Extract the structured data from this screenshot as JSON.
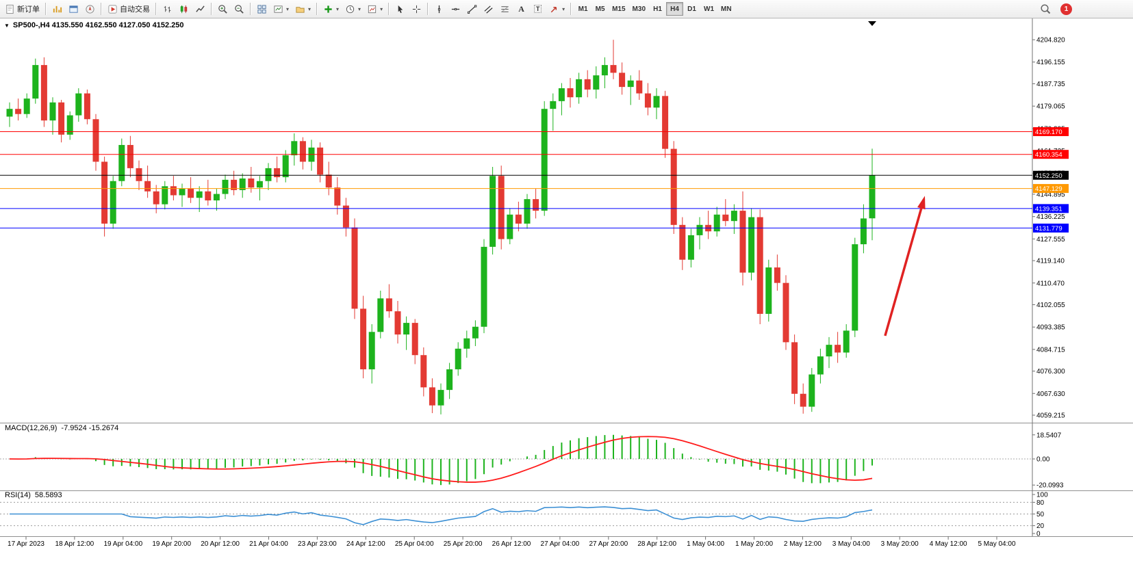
{
  "toolbar": {
    "new_order": "新订单",
    "auto_trading": "自动交易",
    "text_tool": "A",
    "label_tool": "T",
    "timeframes": [
      "M1",
      "M5",
      "M15",
      "M30",
      "H1",
      "H4",
      "D1",
      "W1",
      "MN"
    ],
    "active_timeframe": "H4",
    "notification_count": "1"
  },
  "chart": {
    "title": "SP500-,H4 4135.550 4162.550 4127.050 4152.250"
  },
  "colors": {
    "up": "#1db31d",
    "down": "#e33a33",
    "macd_hist": "#1db31d",
    "macd_signal": "#ff1a1a",
    "rsi": "#3b8fd4",
    "axis_text": "#000000",
    "separator": "#909090"
  },
  "chart_data": {
    "type": "candlestick",
    "symbol": "SP500-",
    "period": "H4",
    "ohlc_display": {
      "open": "4135.550",
      "high": "4162.550",
      "low": "4127.050",
      "close": "4152.250"
    },
    "y_axis_labels": [
      "4204.820",
      "4196.155",
      "4187.735",
      "4179.065",
      "4170.395",
      "4161.725",
      "4153.055",
      "4144.895",
      "4136.225",
      "4127.555",
      "4119.140",
      "4110.470",
      "4102.055",
      "4093.385",
      "4084.715",
      "4076.300",
      "4067.630",
      "4059.215"
    ],
    "x_axis_labels": [
      "17 Apr 2023",
      "18 Apr 12:00",
      "19 Apr 04:00",
      "19 Apr 20:00",
      "20 Apr 12:00",
      "21 Apr 04:00",
      "23 Apr 23:00",
      "24 Apr 12:00",
      "25 Apr 04:00",
      "25 Apr 20:00",
      "26 Apr 12:00",
      "27 Apr 04:00",
      "27 Apr 20:00",
      "28 Apr 12:00",
      "1 May 04:00",
      "1 May 20:00",
      "2 May 12:00",
      "3 May 04:00",
      "3 May 20:00",
      "4 May 12:00",
      "5 May 04:00"
    ],
    "hlines": [
      {
        "price": 4169.17,
        "label": "4169.170",
        "color": "#ff0000"
      },
      {
        "price": 4160.354,
        "label": "4160.354",
        "color": "#ff0000"
      },
      {
        "price": 4152.25,
        "label": "4152.250",
        "color": "#000000",
        "type": "current-price"
      },
      {
        "price": 4147.129,
        "label": "4147.129",
        "color": "#ff9900"
      },
      {
        "price": 4139.351,
        "label": "4139.351",
        "color": "#0000ff"
      },
      {
        "price": 4131.779,
        "label": "4131.779",
        "color": "#0000ff"
      }
    ],
    "candles": [
      [
        4175.0,
        4180.5,
        4171.0,
        4178.0
      ],
      [
        4178.0,
        4182.0,
        4173.5,
        4176.0
      ],
      [
        4176.0,
        4184.0,
        4174.5,
        4182.0
      ],
      [
        4182.0,
        4197.5,
        4180.0,
        4195.0
      ],
      [
        4195.0,
        4198.0,
        4171.0,
        4173.5
      ],
      [
        4173.5,
        4182.5,
        4168.0,
        4180.5
      ],
      [
        4180.5,
        4181.5,
        4165.0,
        4168.0
      ],
      [
        4168.0,
        4177.0,
        4166.0,
        4175.5
      ],
      [
        4175.5,
        4186.0,
        4173.0,
        4184.0
      ],
      [
        4184.0,
        4185.5,
        4172.0,
        4174.0
      ],
      [
        4174.0,
        4176.0,
        4154.0,
        4157.5
      ],
      [
        4157.5,
        4159.5,
        4128.5,
        4133.5
      ],
      [
        4133.5,
        4152.0,
        4131.5,
        4150.0
      ],
      [
        4150.0,
        4166.5,
        4148.0,
        4164.0
      ],
      [
        4164.0,
        4167.5,
        4151.5,
        4155.0
      ],
      [
        4155.0,
        4158.0,
        4146.5,
        4150.0
      ],
      [
        4150.0,
        4156.0,
        4143.5,
        4146.0
      ],
      [
        4146.0,
        4148.5,
        4137.5,
        4141.0
      ],
      [
        4141.0,
        4150.0,
        4139.0,
        4148.0
      ],
      [
        4148.0,
        4152.0,
        4142.5,
        4144.5
      ],
      [
        4144.5,
        4149.0,
        4140.0,
        4147.0
      ],
      [
        4147.0,
        4151.5,
        4141.5,
        4143.5
      ],
      [
        4143.5,
        4148.0,
        4138.0,
        4146.0
      ],
      [
        4146.0,
        4150.5,
        4140.5,
        4142.5
      ],
      [
        4142.5,
        4147.0,
        4138.5,
        4145.0
      ],
      [
        4145.0,
        4152.5,
        4143.0,
        4150.5
      ],
      [
        4150.5,
        4154.0,
        4144.5,
        4146.5
      ],
      [
        4146.5,
        4153.0,
        4143.5,
        4151.0
      ],
      [
        4151.0,
        4155.5,
        4145.5,
        4147.5
      ],
      [
        4147.5,
        4152.0,
        4142.5,
        4150.0
      ],
      [
        4150.0,
        4157.0,
        4146.5,
        4155.0
      ],
      [
        4155.0,
        4159.5,
        4149.5,
        4151.5
      ],
      [
        4151.5,
        4162.0,
        4149.5,
        4160.0
      ],
      [
        4160.0,
        4168.5,
        4156.0,
        4165.5
      ],
      [
        4165.5,
        4167.0,
        4154.5,
        4157.5
      ],
      [
        4157.5,
        4166.0,
        4154.0,
        4163.0
      ],
      [
        4163.0,
        4165.0,
        4149.5,
        4152.5
      ],
      [
        4152.5,
        4157.5,
        4144.5,
        4147.5
      ],
      [
        4147.5,
        4151.5,
        4137.0,
        4140.5
      ],
      [
        4140.5,
        4143.5,
        4128.5,
        4132.0
      ],
      [
        4132.0,
        4135.5,
        4096.5,
        4100.5
      ],
      [
        4100.5,
        4105.5,
        4073.5,
        4077.0
      ],
      [
        4077.0,
        4094.5,
        4071.5,
        4091.5
      ],
      [
        4091.5,
        4107.5,
        4089.0,
        4104.5
      ],
      [
        4104.5,
        4110.0,
        4097.0,
        4099.5
      ],
      [
        4099.5,
        4103.5,
        4087.0,
        4090.5
      ],
      [
        4090.5,
        4097.5,
        4084.5,
        4095.0
      ],
      [
        4095.0,
        4096.5,
        4079.0,
        4082.5
      ],
      [
        4082.5,
        4085.5,
        4066.5,
        4070.0
      ],
      [
        4070.0,
        4073.5,
        4060.0,
        4063.0
      ],
      [
        4063.0,
        4071.5,
        4059.5,
        4069.0
      ],
      [
        4069.0,
        4079.5,
        4065.5,
        4077.0
      ],
      [
        4077.0,
        4087.5,
        4074.5,
        4085.0
      ],
      [
        4085.0,
        4092.0,
        4081.5,
        4089.0
      ],
      [
        4089.0,
        4096.0,
        4086.0,
        4093.5
      ],
      [
        4093.5,
        4127.5,
        4091.0,
        4124.5
      ],
      [
        4124.5,
        4155.5,
        4121.5,
        4152.0
      ],
      [
        4152.0,
        4156.0,
        4123.5,
        4127.5
      ],
      [
        4127.5,
        4139.5,
        4125.5,
        4137.0
      ],
      [
        4137.0,
        4142.0,
        4130.5,
        4133.5
      ],
      [
        4133.5,
        4145.0,
        4131.5,
        4143.0
      ],
      [
        4143.0,
        4147.0,
        4135.5,
        4138.5
      ],
      [
        4138.5,
        4181.0,
        4136.5,
        4178.0
      ],
      [
        4178.0,
        4184.0,
        4169.5,
        4181.0
      ],
      [
        4181.0,
        4188.0,
        4175.5,
        4186.0
      ],
      [
        4186.0,
        4190.0,
        4178.5,
        4182.5
      ],
      [
        4182.5,
        4192.0,
        4180.0,
        4189.5
      ],
      [
        4189.5,
        4193.0,
        4182.5,
        4185.5
      ],
      [
        4185.5,
        4194.5,
        4182.0,
        4191.0
      ],
      [
        4191.0,
        4198.0,
        4186.0,
        4195.0
      ],
      [
        4195.0,
        4204.8,
        4189.5,
        4192.0
      ],
      [
        4192.0,
        4196.0,
        4183.5,
        4186.5
      ],
      [
        4186.5,
        4191.0,
        4179.5,
        4189.0
      ],
      [
        4189.0,
        4193.0,
        4181.5,
        4184.0
      ],
      [
        4184.0,
        4188.0,
        4175.5,
        4178.5
      ],
      [
        4178.5,
        4186.0,
        4174.0,
        4183.0
      ],
      [
        4183.0,
        4185.0,
        4159.0,
        4162.5
      ],
      [
        4162.5,
        4165.5,
        4129.5,
        4133.0
      ],
      [
        4133.0,
        4136.0,
        4115.5,
        4119.5
      ],
      [
        4119.5,
        4131.5,
        4116.5,
        4129.0
      ],
      [
        4129.0,
        4136.0,
        4123.5,
        4133.0
      ],
      [
        4133.0,
        4138.5,
        4127.5,
        4130.5
      ],
      [
        4130.5,
        4140.0,
        4128.5,
        4137.0
      ],
      [
        4137.0,
        4143.0,
        4132.5,
        4134.5
      ],
      [
        4134.5,
        4141.0,
        4129.5,
        4138.5
      ],
      [
        4138.5,
        4146.0,
        4109.5,
        4114.5
      ],
      [
        4114.5,
        4139.5,
        4111.5,
        4136.0
      ],
      [
        4136.0,
        4139.0,
        4094.5,
        4098.5
      ],
      [
        4098.5,
        4119.5,
        4095.5,
        4116.5
      ],
      [
        4116.5,
        4121.5,
        4107.5,
        4110.5
      ],
      [
        4110.5,
        4113.5,
        4084.5,
        4087.5
      ],
      [
        4087.5,
        4090.5,
        4063.5,
        4067.5
      ],
      [
        4067.5,
        4071.5,
        4059.8,
        4062.5
      ],
      [
        4062.5,
        4077.5,
        4060.5,
        4075.0
      ],
      [
        4075.0,
        4085.0,
        4071.5,
        4082.0
      ],
      [
        4082.0,
        4089.5,
        4077.5,
        4086.5
      ],
      [
        4086.5,
        4091.5,
        4079.5,
        4083.5
      ],
      [
        4083.5,
        4094.5,
        4081.5,
        4092.0
      ],
      [
        4092.0,
        4128.0,
        4089.5,
        4125.5
      ],
      [
        4125.5,
        4141.0,
        4122.0,
        4135.5
      ],
      [
        4135.55,
        4162.55,
        4127.05,
        4152.25
      ]
    ],
    "arrow": {
      "from": {
        "index": 101.5,
        "price": 4090
      },
      "to": {
        "index": 106,
        "price": 4143
      },
      "color": "#e02222"
    },
    "macd": {
      "label": "MACD(12,26,9)",
      "values": "-7.9524 -15.2674",
      "axis_labels": [
        "18.5407",
        "0.00",
        "-20.0993"
      ]
    },
    "rsi": {
      "label": "RSI(14)",
      "value": "58.5893",
      "axis_labels": [
        "100",
        "80",
        "50",
        "20",
        "0"
      ],
      "levels": [
        80,
        50,
        20
      ]
    }
  }
}
